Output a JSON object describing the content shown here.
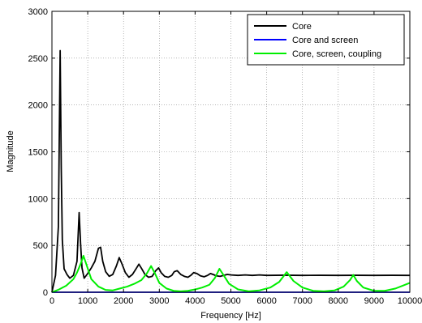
{
  "chart_data": {
    "type": "line",
    "title": "",
    "xlabel": "Frequency [Hz]",
    "ylabel": "Magnitude",
    "xlim": [
      0,
      10000
    ],
    "ylim": [
      0,
      3000
    ],
    "xticks": [
      0,
      1000,
      2000,
      3000,
      4000,
      5000,
      6000,
      7000,
      8000,
      9000,
      10000
    ],
    "yticks": [
      0,
      500,
      1000,
      1500,
      2000,
      2500,
      3000
    ],
    "xtick_labels": [
      "0",
      "1000",
      "2000",
      "3000",
      "4000",
      "5000",
      "6000",
      "7000",
      "8000",
      "9000",
      "10000"
    ],
    "ytick_labels": [
      "0",
      "500",
      "1000",
      "1500",
      "2000",
      "2500",
      "3000"
    ],
    "grid": true,
    "legend_position": "top-right",
    "series": [
      {
        "name": "Core",
        "color": "#000000",
        "x": [
          0,
          100,
          180,
          230,
          260,
          290,
          340,
          420,
          500,
          600,
          700,
          760,
          800,
          840,
          900,
          1000,
          1100,
          1200,
          1300,
          1360,
          1420,
          1500,
          1600,
          1700,
          1800,
          1880,
          1960,
          2050,
          2150,
          2250,
          2350,
          2430,
          2510,
          2600,
          2700,
          2800,
          2900,
          2980,
          3050,
          3150,
          3250,
          3350,
          3420,
          3500,
          3600,
          3700,
          3800,
          3880,
          3960,
          4050,
          4150,
          4250,
          4350,
          4430,
          4500,
          4600,
          4700,
          4800,
          4900,
          5000,
          5200,
          5400,
          5600,
          5800,
          6000,
          6500,
          7000,
          7500,
          8000,
          8500,
          9000,
          9500,
          10000
        ],
        "y": [
          0,
          180,
          700,
          2580,
          1320,
          560,
          250,
          190,
          150,
          180,
          330,
          850,
          520,
          260,
          150,
          200,
          260,
          330,
          470,
          480,
          330,
          220,
          170,
          190,
          280,
          370,
          300,
          210,
          160,
          190,
          250,
          300,
          250,
          190,
          160,
          170,
          230,
          260,
          210,
          170,
          160,
          180,
          220,
          230,
          190,
          170,
          160,
          180,
          210,
          200,
          175,
          165,
          180,
          200,
          190,
          175,
          170,
          180,
          190,
          185,
          180,
          185,
          180,
          185,
          180,
          182,
          180,
          181,
          180,
          181,
          180,
          181,
          180
        ]
      },
      {
        "name": "Core and screen",
        "color": "#0000ff",
        "x": [
          0,
          10000
        ],
        "y": [
          0,
          0
        ]
      },
      {
        "name": "Core, screen, coupling",
        "color": "#00ee00",
        "x": [
          0,
          200,
          400,
          600,
          700,
          800,
          880,
          960,
          1100,
          1300,
          1500,
          1700,
          1900,
          2100,
          2300,
          2500,
          2650,
          2770,
          2880,
          3000,
          3200,
          3400,
          3600,
          3800,
          4000,
          4200,
          4400,
          4550,
          4680,
          4800,
          4950,
          5200,
          5500,
          5800,
          6100,
          6350,
          6560,
          6750,
          7000,
          7300,
          7600,
          7900,
          8150,
          8330,
          8420,
          8520,
          8700,
          9000,
          9300,
          9600,
          9800,
          10000
        ],
        "y": [
          0,
          30,
          70,
          140,
          210,
          300,
          390,
          300,
          140,
          60,
          25,
          20,
          40,
          60,
          90,
          130,
          200,
          280,
          200,
          100,
          40,
          15,
          10,
          15,
          30,
          50,
          80,
          150,
          250,
          180,
          90,
          30,
          10,
          20,
          50,
          110,
          215,
          120,
          50,
          15,
          10,
          20,
          60,
          130,
          185,
          120,
          50,
          15,
          15,
          40,
          70,
          100
        ]
      }
    ]
  }
}
